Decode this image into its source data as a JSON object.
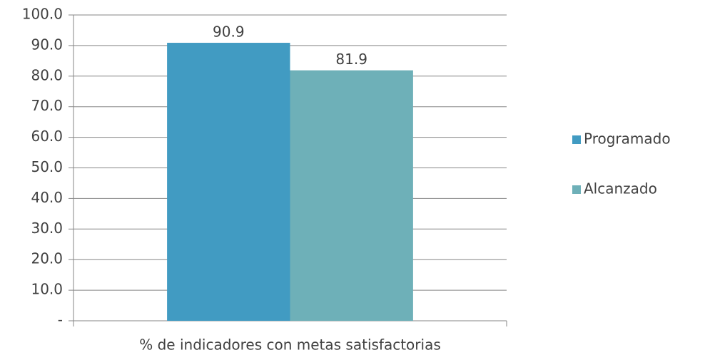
{
  "chart_data": {
    "type": "bar",
    "categories": [
      "% de indicadores con metas satisfactorias"
    ],
    "series": [
      {
        "name": "Programado",
        "color": "#419bc2",
        "values": [
          90.9
        ]
      },
      {
        "name": "Alcanzado",
        "color": "#6eb0b8",
        "values": [
          81.9
        ]
      }
    ],
    "ylim": [
      0,
      100
    ],
    "yticks": [
      {
        "value": 0,
        "label": "-"
      },
      {
        "value": 10,
        "label": "10.0"
      },
      {
        "value": 20,
        "label": "20.0"
      },
      {
        "value": 30,
        "label": "30.0"
      },
      {
        "value": 40,
        "label": "40.0"
      },
      {
        "value": 50,
        "label": "50.0"
      },
      {
        "value": 60,
        "label": "60.0"
      },
      {
        "value": 70,
        "label": "70.0"
      },
      {
        "value": 80,
        "label": "80.0"
      },
      {
        "value": 90,
        "label": "90.0"
      },
      {
        "value": 100,
        "label": "100.0"
      }
    ],
    "grid": true,
    "legend": "right"
  }
}
